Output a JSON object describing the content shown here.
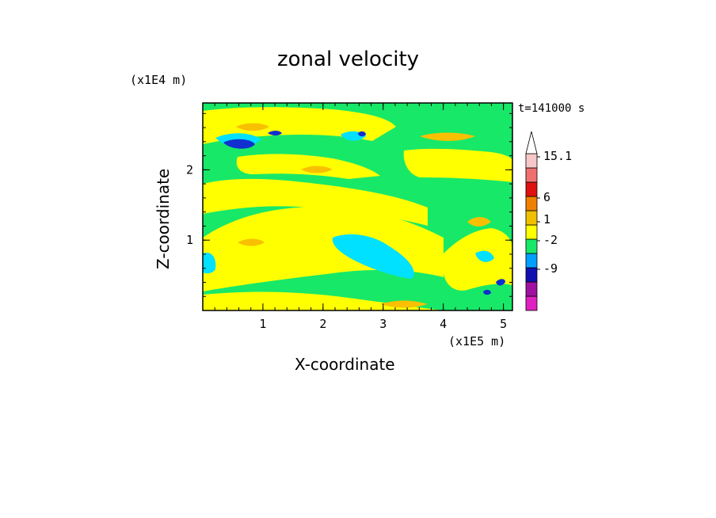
{
  "chart_data": {
    "type": "heatmap",
    "title": "zonal velocity",
    "xlabel": "X-coordinate",
    "ylabel": "Z-coordinate",
    "x_unit": "(x1E5 m)",
    "y_unit": "(x1E4 m)",
    "time_label": "t=141000 s",
    "xlim": [
      0,
      5.15
    ],
    "ylim": [
      0,
      2.95
    ],
    "x_ticks": [
      "1",
      "2",
      "3",
      "4",
      "5"
    ],
    "x_tick_values": [
      1,
      2,
      3,
      4,
      5
    ],
    "y_ticks": [
      "1",
      "2"
    ],
    "y_tick_values": [
      1,
      2
    ],
    "colorbar": {
      "labels": [
        "15.1",
        "6",
        "1",
        "-2",
        "-9"
      ],
      "label_values": [
        15.1,
        6,
        1,
        -2,
        -9
      ],
      "colors": [
        "#e020c0",
        "#a010a0",
        "#1010b0",
        "#00a0ff",
        "#18e868",
        "#ffff00",
        "#f0c000",
        "#f08000",
        "#e01010",
        "#f07070",
        "#f8c8c8"
      ],
      "arrow_color": "#ffffff"
    },
    "field_colors": {
      "background": "#18e868",
      "cyan": "#00e0ff",
      "yellow": "#ffff00",
      "light_orange": "#f8c000",
      "orange": "#f0a000",
      "blue": "#1030d0"
    }
  }
}
